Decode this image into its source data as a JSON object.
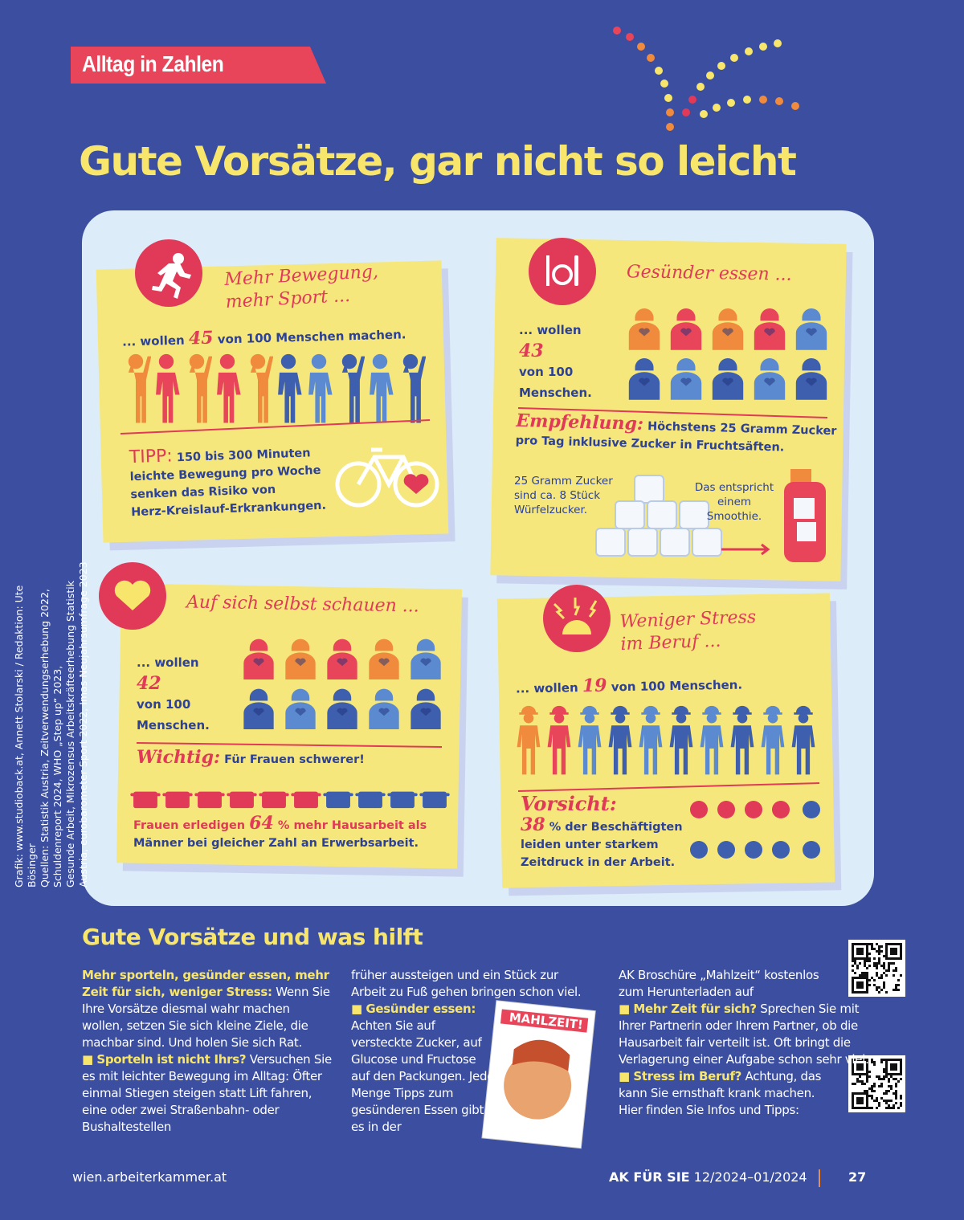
{
  "header": {
    "tag": "Alltag in Zahlen",
    "title": "Gute Vorsätze, gar nicht so leicht"
  },
  "cards": [
    {
      "title_lines": [
        "Mehr Bewegung,",
        "mehr Sport ..."
      ],
      "stat": {
        "before": "... wollen",
        "number": 45,
        "after": "von 100 Menschen machen."
      },
      "note": {
        "label": "TIPP:",
        "lines": [
          "150 bis 300 Minuten",
          "leichte Bewegung pro Woche",
          "senken das Risiko von",
          "Herz-Kreislauf-Erkrankungen."
        ]
      }
    },
    {
      "title_lines": [
        "Gesünder essen ..."
      ],
      "stat": {
        "before": "... wollen",
        "number": 43,
        "after_lines": [
          "von 100",
          "Menschen."
        ]
      },
      "note": {
        "label": "Empfehlung:",
        "lines": [
          "Höchstens 25 Gramm Zucker",
          "pro Tag inklusive Zucker in Fruchtsäften."
        ]
      },
      "extra_left": [
        "25 Gramm Zucker",
        "sind ca. 8 Stück",
        "Würfelzucker."
      ],
      "extra_right": [
        "Das entspricht",
        "einem",
        "Smoothie."
      ]
    },
    {
      "title_lines": [
        "Auf sich selbst schauen ..."
      ],
      "stat": {
        "before": "... wollen",
        "number": 42,
        "after_lines": [
          "von 100",
          "Menschen."
        ]
      },
      "note": {
        "label": "Wichtig:",
        "lines": [
          "Für Frauen schwerer!"
        ]
      },
      "fact": {
        "before": "Frauen erledigen",
        "number": 64,
        "after": "% mehr Hausarbeit als",
        "line2": "Männer bei gleicher Zahl an Erwerbsarbeit."
      }
    },
    {
      "title_lines": [
        "Weniger Stress",
        "im Beruf ..."
      ],
      "stat": {
        "before": "... wollen",
        "number": 19,
        "after": "von 100 Menschen."
      },
      "note": {
        "label": "Vorsicht:"
      },
      "fact": {
        "number": 38,
        "after": "% der Beschäftigten",
        "lines": [
          "leiden unter starkem",
          "Zeitdruck in der Arbeit."
        ]
      }
    }
  ],
  "article": {
    "heading": "Gute Vorsätze und was hilft",
    "col1": {
      "lead_bold": "Mehr sporteln, gesünder essen, mehr Zeit für sich, weniger Stress:",
      "lead_text": "Wenn Sie Ihre Vorsätze diesmal wahr machen wollen, setzen Sie sich kleine Ziele, die machbar sind. Und holen Sie sich Rat.",
      "p2_bold": "Sporteln ist nicht Ihrs?",
      "p2_text": "Versuchen Sie es mit leichter Bewegung im Alltag: Öfter einmal Stiegen steigen statt Lift fahren, eine oder zwei Straßenbahn- oder Bushaltestellen"
    },
    "col2": {
      "p2_cont": "früher aussteigen und ein Stück zur Arbeit zu Fuß gehen bringen schon viel.",
      "p3_bold": "Gesünder essen:",
      "p3_text": "Achten Sie auf versteckte Zucker, auf Glucose und Fructose auf den Packungen. Jede Menge Tipps zum gesünderen Essen gibt es in der"
    },
    "col3": {
      "p3_cont": "AK Broschüre „Mahlzeit“ kostenlos zum Herunterladen auf",
      "p4_bold": "Mehr Zeit für sich?",
      "p4_text": "Sprechen Sie mit Ihrer Partnerin oder Ihrem Partner, ob die Hausarbeit fair verteilt ist. Oft bringt die Verlagerung einer Aufgabe schon sehr viel.",
      "p5_bold": "Stress im Beruf?",
      "p5_text": "Achtung, das kann Sie ernsthaft krank machen. Hier finden Sie Infos und Tipps:"
    },
    "brochure_title": "MAHLZEIT!"
  },
  "credits": {
    "graphic": "Grafik: www.studioback.at, Annett Stolarski / Redaktion: Ute Bösinger",
    "sources_1": "Quellen: Statistik Austria, Zeitverwendungserhebung 2022, Schuldenreport 2024, WHO „Step up“ 2023,",
    "sources_2": "Gesunde Arbeit, Mikrozensus Arbeitskräfteerhebung Statistik Austria, eurobarometer Sport 2022, Imas Neujahrsumfrage 2023"
  },
  "footer": {
    "url": "wien.arbeiterkammer.at",
    "magazine": "AK FÜR SIE",
    "issue": "12/2024–01/2024",
    "page": "27"
  }
}
